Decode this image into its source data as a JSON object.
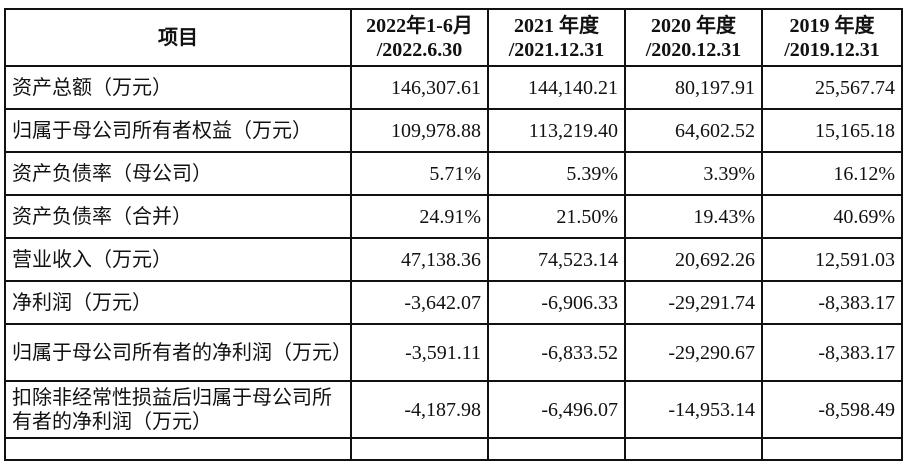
{
  "table": {
    "headers": [
      {
        "line1": "项目",
        "line2": ""
      },
      {
        "line1": "2022年1-6月",
        "line2": "/2022.6.30"
      },
      {
        "line1": "2021 年度",
        "line2": "/2021.12.31"
      },
      {
        "line1": "2020 年度",
        "line2": "/2020.12.31"
      },
      {
        "line1": "2019 年度",
        "line2": "/2019.12.31"
      }
    ],
    "rows": [
      {
        "label": "资产总额（万元）",
        "values": [
          "146,307.61",
          "144,140.21",
          "80,197.91",
          "25,567.74"
        ]
      },
      {
        "label": "归属于母公司所有者权益（万元）",
        "values": [
          "109,978.88",
          "113,219.40",
          "64,602.52",
          "15,165.18"
        ]
      },
      {
        "label": "资产负债率（母公司）",
        "values": [
          "5.71%",
          "5.39%",
          "3.39%",
          "16.12%"
        ]
      },
      {
        "label": "资产负债率（合并）",
        "values": [
          "24.91%",
          "21.50%",
          "19.43%",
          "40.69%"
        ]
      },
      {
        "label": "营业收入（万元）",
        "values": [
          "47,138.36",
          "74,523.14",
          "20,692.26",
          "12,591.03"
        ]
      },
      {
        "label": "净利润（万元）",
        "values": [
          "-3,642.07",
          "-6,906.33",
          "-29,291.74",
          "-8,383.17"
        ]
      },
      {
        "label": "归属于母公司所有者的净利润（万元）",
        "values": [
          "-3,591.11",
          "-6,833.52",
          "-29,290.67",
          "-8,383.17"
        ]
      },
      {
        "label": "扣除非经常性损益后归属于母公司所有者的净利润（万元）",
        "values": [
          "-4,187.98",
          "-6,496.07",
          "-14,953.14",
          "-8,598.49"
        ]
      }
    ]
  }
}
